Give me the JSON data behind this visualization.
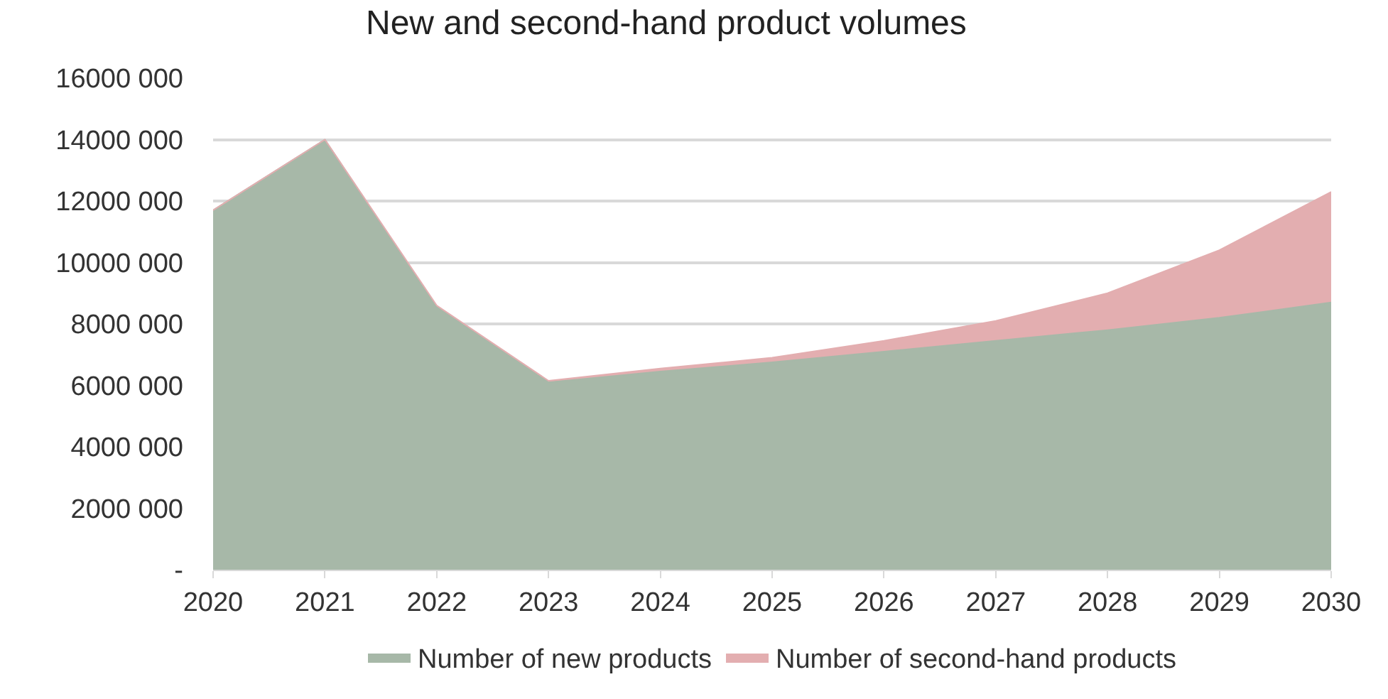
{
  "chart_data": {
    "type": "area",
    "title": "New and second-hand product volumes",
    "stacked": true,
    "x": [
      2020,
      2021,
      2022,
      2023,
      2024,
      2025,
      2026,
      2027,
      2028,
      2029,
      2030
    ],
    "series": [
      {
        "name": "Number of new products",
        "color": "#a7b8a8",
        "values": [
          11700000,
          14000000,
          8550000,
          6100000,
          6450000,
          6750000,
          7100000,
          7450000,
          7800000,
          8200000,
          8700000
        ]
      },
      {
        "name": "Number of second-hand products",
        "color": "#e3aeb0",
        "values": [
          0,
          0,
          50000,
          50000,
          100000,
          150000,
          350000,
          650000,
          1200000,
          2200000,
          3600000
        ]
      }
    ],
    "xlim": [
      2020,
      2030
    ],
    "xticks": [
      2020,
      2021,
      2022,
      2023,
      2024,
      2025,
      2026,
      2027,
      2028,
      2029,
      2030
    ],
    "ylim": [
      0,
      16000000
    ],
    "yticks": [
      {
        "value": 0,
        "label": "-"
      },
      {
        "value": 2000000,
        "label": "2000 000"
      },
      {
        "value": 4000000,
        "label": "4000 000"
      },
      {
        "value": 6000000,
        "label": "6000 000"
      },
      {
        "value": 8000000,
        "label": "8000 000"
      },
      {
        "value": 10000000,
        "label": "10000 000"
      },
      {
        "value": 12000000,
        "label": "12000 000"
      },
      {
        "value": 14000000,
        "label": "14000 000"
      },
      {
        "value": 16000000,
        "label": "16000 000"
      }
    ],
    "grid": "y",
    "legend": "bottom"
  }
}
